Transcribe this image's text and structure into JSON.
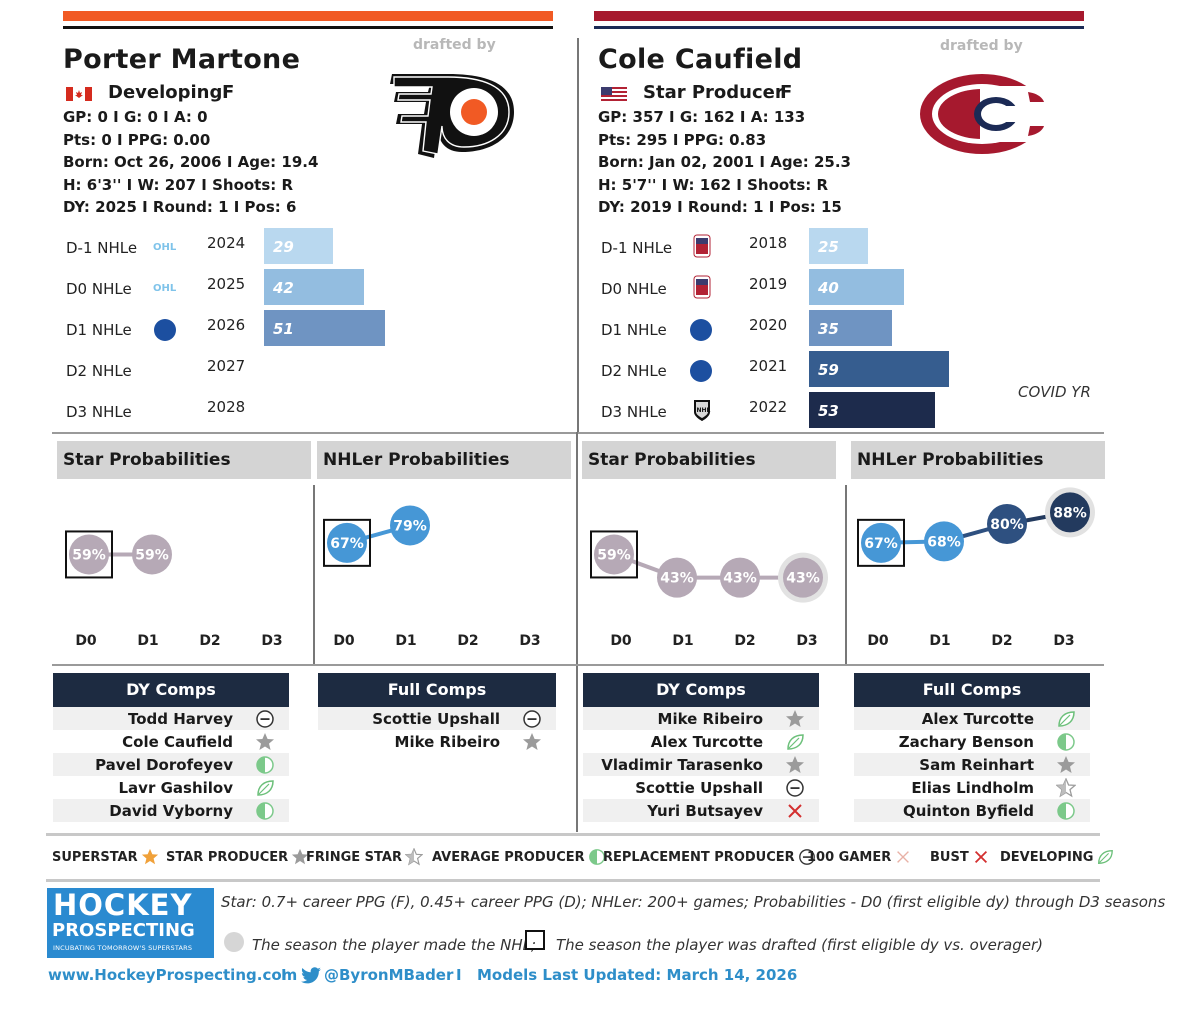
{
  "left": {
    "name": "Porter Martone",
    "drafted_by": "drafted by",
    "tier": "Developing",
    "position": "F",
    "stats": [
      "GP: 0 I G: 0 I A: 0",
      "Pts: 0 I PPG: 0.00",
      "Born: Oct 26, 2006 I Age: 19.4",
      "H: 6'3'' I W: 207 I Shoots: R",
      "DY: 2025 I Round: 1 I Pos: 6"
    ],
    "rows": [
      {
        "label": "D-1 NHLe",
        "year": "2024",
        "value": "29",
        "val": 29,
        "color": "#b9d8ef",
        "league": "ohl"
      },
      {
        "label": "D0 NHLe",
        "year": "2025",
        "value": "42",
        "val": 42,
        "color": "#93bde0",
        "league": "ohl"
      },
      {
        "label": "D1 NHLe",
        "year": "2026",
        "value": "51",
        "val": 51,
        "color": "#6f94c2",
        "league": "ncaa"
      },
      {
        "label": "D2 NHLe",
        "year": "2027",
        "value": "",
        "val": 0,
        "color": "#fff",
        "league": ""
      },
      {
        "label": "D3 NHLe",
        "year": "2028",
        "value": "",
        "val": 0,
        "color": "#fff",
        "league": ""
      }
    ],
    "star_title": "Star Probabilities",
    "nhler_title": "NHLer Probabilities",
    "star": [
      {
        "label": "59%",
        "val": 59,
        "color": "#b6a9b6"
      },
      {
        "label": "59%",
        "val": 59,
        "color": "#b6a9b6"
      }
    ],
    "nhler": [
      {
        "label": "67%",
        "val": 67,
        "color": "#4697d6"
      },
      {
        "label": "79%",
        "val": 79,
        "color": "#4697d6"
      }
    ],
    "dy_comps_title": "DY Comps",
    "full_comps_title": "Full Comps",
    "dy_comps": [
      {
        "name": "Todd Harvey",
        "icon": "average-producer-icon"
      },
      {
        "name": "Cole Caufield",
        "icon": "star-producer-icon"
      },
      {
        "name": "Pavel Dorofeyev",
        "icon": "developing-half-icon"
      },
      {
        "name": "Lavr Gashilov",
        "icon": "leaf-icon"
      },
      {
        "name": "David Vyborny",
        "icon": "developing-half-icon"
      }
    ],
    "full_comps": [
      {
        "name": "Scottie Upshall",
        "icon": "average-producer-icon"
      },
      {
        "name": "Mike Ribeiro",
        "icon": "star-producer-icon"
      }
    ]
  },
  "right": {
    "name": "Cole Caufield",
    "drafted_by": "drafted by",
    "tier": "Star Producer",
    "position": "F",
    "stats": [
      "GP: 357 I G: 162 I A: 133",
      "Pts: 295 I PPG: 0.83",
      "Born: Jan 02, 2001 I Age: 25.3",
      "H: 5'7'' I W: 162 I Shoots: R",
      "DY: 2019 I Round: 1 I Pos: 15"
    ],
    "rows": [
      {
        "label": "D-1 NHLe",
        "year": "2018",
        "value": "25",
        "val": 25,
        "color": "#b9d8ef",
        "league": "usa"
      },
      {
        "label": "D0 NHLe",
        "year": "2019",
        "value": "40",
        "val": 40,
        "color": "#93bde0",
        "league": "usa"
      },
      {
        "label": "D1 NHLe",
        "year": "2020",
        "value": "35",
        "val": 35,
        "color": "#6f94c2",
        "league": "ncaa"
      },
      {
        "label": "D2 NHLe",
        "year": "2021",
        "value": "59",
        "val": 59,
        "color": "#365d8f",
        "league": "ncaa"
      },
      {
        "label": "D3 NHLe",
        "year": "2022",
        "value": "53",
        "val": 53,
        "color": "#1d2b4c",
        "league": "nhl"
      }
    ],
    "covid_note": "COVID YR",
    "star_title": "Star Probabilities",
    "nhler_title": "NHLer Probabilities",
    "star": [
      {
        "label": "59%",
        "val": 59,
        "color": "#b6a9b6"
      },
      {
        "label": "43%",
        "val": 43,
        "color": "#b6a9b6"
      },
      {
        "label": "43%",
        "val": 43,
        "color": "#b6a9b6"
      },
      {
        "label": "43%",
        "val": 43,
        "color": "#b6a9b6"
      }
    ],
    "nhler": [
      {
        "label": "67%",
        "val": 67,
        "color": "#4697d6"
      },
      {
        "label": "68%",
        "val": 68,
        "color": "#4697d6"
      },
      {
        "label": "80%",
        "val": 80,
        "color": "#2e5080"
      },
      {
        "label": "88%",
        "val": 88,
        "color": "#233a5e"
      }
    ],
    "dy_comps_title": "DY Comps",
    "full_comps_title": "Full Comps",
    "dy_comps": [
      {
        "name": "Mike Ribeiro",
        "icon": "star-producer-icon"
      },
      {
        "name": "Alex Turcotte",
        "icon": "leaf-icon"
      },
      {
        "name": "Vladimir Tarasenko",
        "icon": "star-producer-icon"
      },
      {
        "name": "Scottie Upshall",
        "icon": "average-producer-icon"
      },
      {
        "name": "Yuri Butsayev",
        "icon": "bust-icon"
      }
    ],
    "full_comps": [
      {
        "name": "Alex Turcotte",
        "icon": "leaf-icon"
      },
      {
        "name": "Zachary Benson",
        "icon": "developing-half-icon"
      },
      {
        "name": "Sam Reinhart",
        "icon": "star-producer-icon"
      },
      {
        "name": "Elias Lindholm",
        "icon": "fringe-star-icon"
      },
      {
        "name": "Quinton Byfield",
        "icon": "developing-half-icon"
      }
    ]
  },
  "d_labels": [
    "D0",
    "D1",
    "D2",
    "D3"
  ],
  "legend": [
    {
      "label": "SUPERSTAR",
      "icon": "superstar-icon"
    },
    {
      "label": "STAR PRODUCER",
      "icon": "star-producer-icon"
    },
    {
      "label": "FRINGE STAR",
      "icon": "fringe-star-icon"
    },
    {
      "label": "AVERAGE PRODUCER",
      "icon": "developing-half-icon"
    },
    {
      "label": "REPLACEMENT PRODUCER",
      "icon": "average-producer-icon"
    },
    {
      "label": "100 GAMER",
      "icon": "hundred-gamer-icon"
    },
    {
      "label": "BUST",
      "icon": "bust-icon"
    },
    {
      "label": "DEVELOPING",
      "icon": "leaf-icon"
    }
  ],
  "footnote1": "Star: 0.7+ career PPG (F), 0.45+ career PPG (D); NHLer: 200+ games; Probabilities - D0 (first eligible dy) through D3 seasons",
  "footnote2a": "The season the player made the NHL;",
  "footnote2b": "The season the player was drafted (first eligible dy vs. overager)",
  "brand": {
    "line1": "HOCKEY",
    "line2": "PROSPECTING",
    "tagline": "INCUBATING TOMORROW'S SUPERSTARS"
  },
  "footer": {
    "site": "www.HockeyProspecting.com",
    "sep": "I",
    "twitter": "@ByronMBader",
    "updated": "Models Last Updated: March 14, 2026"
  },
  "colors": {
    "flyers_orange": "#f15a24",
    "habs_red": "#a6192e",
    "habs_blue": "#1b2a55",
    "comp_header": "#1d2b41",
    "link_blue": "#2e8ec9"
  }
}
